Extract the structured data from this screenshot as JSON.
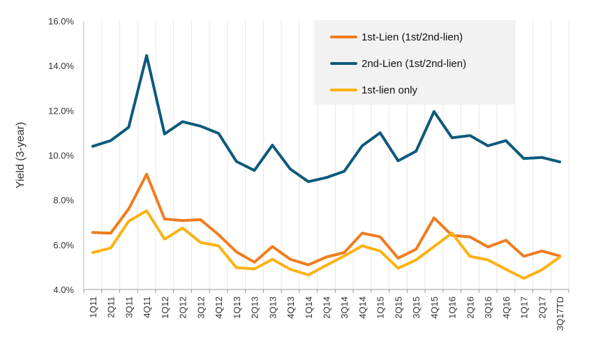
{
  "chart_data": {
    "type": "line",
    "title": "",
    "xlabel": "",
    "ylabel": "Yield (3-year)",
    "ylim": [
      4.0,
      16.0
    ],
    "yticks": [
      "4.0%",
      "6.0%",
      "8.0%",
      "10.0%",
      "12.0%",
      "14.0%",
      "16.0%"
    ],
    "ytick_values": [
      4,
      6,
      8,
      10,
      12,
      14,
      16
    ],
    "grid": "vertical",
    "legend_position": "top-right",
    "categories": [
      "1Q11",
      "2Q11",
      "3Q11",
      "4Q11",
      "1Q12",
      "2Q12",
      "3Q12",
      "4Q12",
      "1Q13",
      "2Q13",
      "3Q13",
      "4Q13",
      "1Q14",
      "2Q14",
      "3Q14",
      "4Q14",
      "1Q15",
      "2Q15",
      "3Q15",
      "4Q15",
      "1Q16",
      "2Q16",
      "3Q16",
      "4Q16",
      "1Q17",
      "2Q17",
      "3Q17TD"
    ],
    "series": [
      {
        "name": "1st-Lien (1st/2nd-lien)",
        "color": "#f07c1e",
        "values": [
          6.55,
          6.52,
          7.6,
          9.15,
          7.15,
          7.08,
          7.12,
          6.45,
          5.68,
          5.22,
          5.92,
          5.35,
          5.1,
          5.45,
          5.65,
          6.52,
          6.35,
          5.4,
          5.8,
          7.2,
          6.42,
          6.35,
          5.9,
          6.2,
          5.48,
          5.72,
          5.5
        ]
      },
      {
        "name": "2nd-Lien (1st/2nd-lien)",
        "color": "#0d5a7d",
        "values": [
          10.4,
          10.65,
          11.25,
          14.45,
          10.95,
          11.5,
          11.3,
          10.98,
          9.72,
          9.32,
          10.45,
          9.38,
          8.82,
          9.0,
          9.28,
          10.42,
          11.0,
          9.75,
          10.18,
          11.95,
          10.78,
          10.88,
          10.42,
          10.65,
          9.85,
          9.9,
          9.7
        ]
      },
      {
        "name": "1st-lien only",
        "color": "#fbb212",
        "values": [
          5.65,
          5.85,
          7.05,
          7.52,
          6.25,
          6.75,
          6.1,
          5.95,
          4.98,
          4.92,
          5.35,
          4.9,
          4.65,
          5.08,
          5.5,
          5.95,
          5.72,
          4.95,
          5.32,
          5.92,
          6.52,
          5.48,
          5.32,
          4.9,
          4.5,
          4.88,
          5.45
        ]
      }
    ]
  }
}
